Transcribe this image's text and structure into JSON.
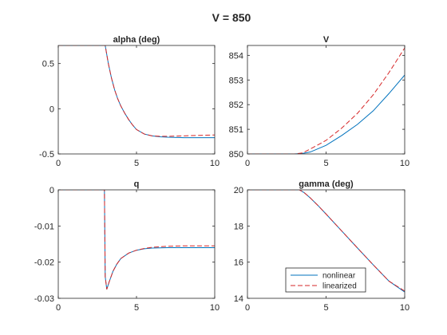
{
  "figure": {
    "title": "V = 850"
  },
  "colors": {
    "nonlinear": "#0072BD",
    "linearized": "#D62728",
    "axis": "#262626"
  },
  "legend": {
    "placement": "bottom-right of gamma (deg) panel",
    "entries": [
      "nonlinear",
      "linearized"
    ]
  },
  "chart_data": [
    {
      "type": "line",
      "title": "alpha (deg)",
      "xlabel": "",
      "ylabel": "",
      "xlim": [
        0,
        10
      ],
      "ylim": [
        -0.5,
        0.7
      ],
      "xticks": [
        "0",
        "5",
        "10"
      ],
      "yticks": [
        "-0.5",
        "0",
        "0.5"
      ],
      "grid": false,
      "series": [
        {
          "name": "nonlinear",
          "style": "solid",
          "x": [
            0,
            3.0,
            3.2,
            3.4,
            3.6,
            3.8,
            4.0,
            4.25,
            4.5,
            4.75,
            5.0,
            5.5,
            6.0,
            6.5,
            7,
            8,
            9,
            10
          ],
          "y": [
            0.7,
            0.7,
            0.5,
            0.34,
            0.21,
            0.11,
            0.03,
            -0.05,
            -0.12,
            -0.18,
            -0.23,
            -0.28,
            -0.3,
            -0.31,
            -0.315,
            -0.32,
            -0.32,
            -0.32
          ]
        },
        {
          "name": "linearized",
          "style": "dashed",
          "x": [
            0,
            3.0,
            3.2,
            3.4,
            3.6,
            3.8,
            4.0,
            4.25,
            4.5,
            4.75,
            5.0,
            5.5,
            6.0,
            6.5,
            7,
            8,
            9,
            10
          ],
          "y": [
            0.7,
            0.7,
            0.5,
            0.34,
            0.21,
            0.11,
            0.03,
            -0.05,
            -0.12,
            -0.18,
            -0.23,
            -0.28,
            -0.3,
            -0.305,
            -0.305,
            -0.3,
            -0.295,
            -0.29
          ]
        }
      ]
    },
    {
      "type": "line",
      "title": "V",
      "xlabel": "",
      "ylabel": "",
      "xlim": [
        0,
        10
      ],
      "ylim": [
        850,
        854.4
      ],
      "xticks": [
        "0",
        "5",
        "10"
      ],
      "yticks": [
        "850",
        "851",
        "852",
        "853",
        "854"
      ],
      "grid": false,
      "series": [
        {
          "name": "nonlinear",
          "style": "solid",
          "x": [
            0,
            3.0,
            3.5,
            4,
            5,
            6,
            7,
            8,
            9,
            10
          ],
          "y": [
            850,
            850,
            850.02,
            850.08,
            850.35,
            850.75,
            851.2,
            851.75,
            852.45,
            853.2
          ]
        },
        {
          "name": "linearized",
          "style": "dashed",
          "x": [
            0,
            3.0,
            3.5,
            4,
            5,
            6,
            7,
            8,
            9,
            10
          ],
          "y": [
            850,
            850,
            850.04,
            850.2,
            850.55,
            851.05,
            851.65,
            852.4,
            853.3,
            854.3
          ]
        }
      ]
    },
    {
      "type": "line",
      "title": "q",
      "xlabel": "",
      "ylabel": "",
      "xlim": [
        0,
        10
      ],
      "ylim": [
        -0.03,
        0
      ],
      "xticks": [
        "0",
        "5",
        "10"
      ],
      "yticks": [
        "-0.03",
        "-0.02",
        "-0.01",
        "0"
      ],
      "grid": false,
      "series": [
        {
          "name": "nonlinear",
          "style": "solid",
          "x": [
            0,
            2.95,
            3.0,
            3.1,
            3.25,
            3.5,
            3.75,
            4.0,
            4.5,
            5,
            5.5,
            6,
            7,
            8,
            9,
            10
          ],
          "y": [
            0,
            0,
            -0.024,
            -0.0275,
            -0.0255,
            -0.0225,
            -0.0205,
            -0.019,
            -0.0175,
            -0.0167,
            -0.0163,
            -0.0161,
            -0.016,
            -0.016,
            -0.016,
            -0.016
          ]
        },
        {
          "name": "linearized",
          "style": "dashed",
          "x": [
            0,
            2.95,
            3.0,
            3.1,
            3.25,
            3.5,
            3.75,
            4.0,
            4.5,
            5,
            5.5,
            6,
            7,
            8,
            9,
            10
          ],
          "y": [
            0,
            0,
            -0.024,
            -0.0275,
            -0.0255,
            -0.0225,
            -0.0205,
            -0.019,
            -0.0175,
            -0.0167,
            -0.0162,
            -0.0159,
            -0.0156,
            -0.0155,
            -0.0155,
            -0.0155
          ]
        }
      ]
    },
    {
      "type": "line",
      "title": "gamma (deg)",
      "xlabel": "",
      "ylabel": "",
      "xlim": [
        0,
        10
      ],
      "ylim": [
        14,
        20
      ],
      "xticks": [
        "0",
        "5",
        "10"
      ],
      "yticks": [
        "14",
        "16",
        "18",
        "20"
      ],
      "grid": false,
      "series": [
        {
          "name": "nonlinear",
          "style": "solid",
          "x": [
            0,
            3.3,
            3.6,
            4.0,
            4.5,
            5,
            6,
            7,
            8,
            9,
            10
          ],
          "y": [
            20,
            20,
            19.85,
            19.55,
            19.12,
            18.66,
            17.72,
            16.78,
            15.85,
            14.95,
            14.35
          ]
        },
        {
          "name": "linearized",
          "style": "dashed",
          "x": [
            0,
            3.3,
            3.6,
            4.0,
            4.5,
            5,
            6,
            7,
            8,
            9,
            10
          ],
          "y": [
            20,
            20,
            19.85,
            19.55,
            19.12,
            18.66,
            17.72,
            16.78,
            15.85,
            14.95,
            14.4
          ]
        }
      ]
    }
  ]
}
